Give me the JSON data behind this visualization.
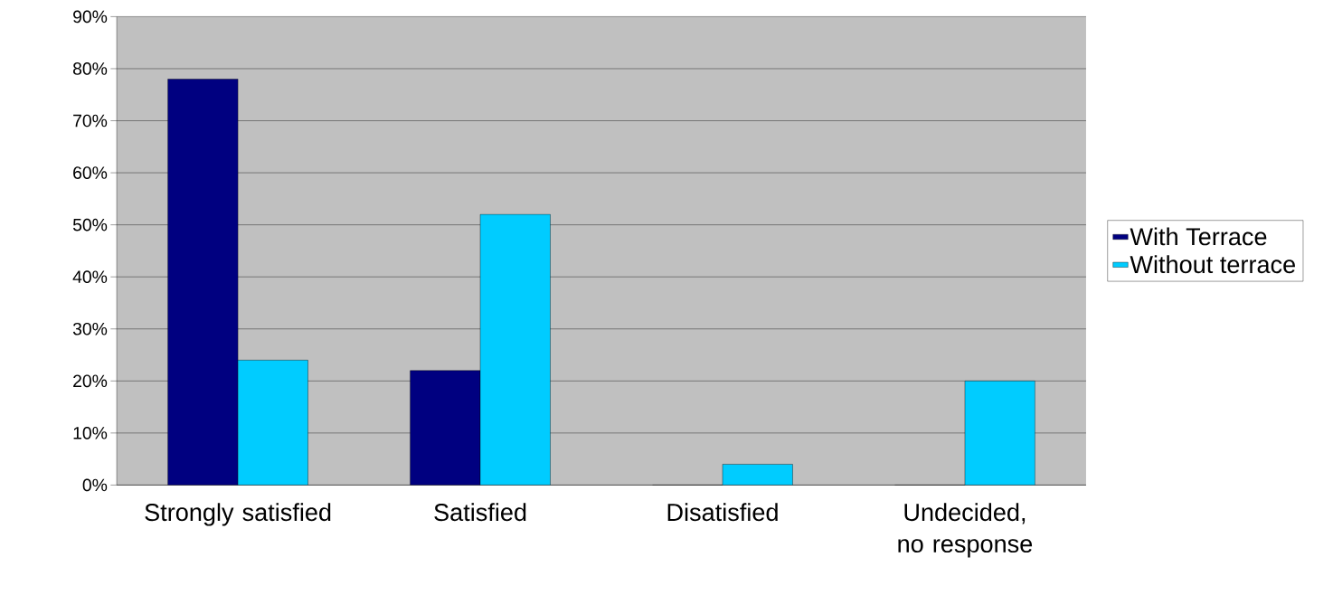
{
  "chart_data": {
    "type": "bar",
    "categories": [
      "Strongly satisfied",
      "Satisfied",
      "Disatisfied",
      "Undecided, no response"
    ],
    "series": [
      {
        "name": "With Terrace",
        "color": "#000080",
        "values": [
          78,
          22,
          0,
          0
        ]
      },
      {
        "name": "Without terrace",
        "color": "#00ccff",
        "values": [
          24,
          52,
          4,
          20
        ]
      }
    ],
    "ylim": [
      0,
      90
    ],
    "yticks": [
      {
        "value": 0,
        "label": "0%"
      },
      {
        "value": 10,
        "label": "10%"
      },
      {
        "value": 20,
        "label": "20%"
      },
      {
        "value": 30,
        "label": "30%"
      },
      {
        "value": 40,
        "label": "40%"
      },
      {
        "value": 50,
        "label": "50%"
      },
      {
        "value": 60,
        "label": "60%"
      },
      {
        "value": 70,
        "label": "70%"
      },
      {
        "value": 80,
        "label": "80%"
      },
      {
        "value": 90,
        "label": "90%"
      }
    ],
    "grid": "y",
    "legend": "right"
  }
}
